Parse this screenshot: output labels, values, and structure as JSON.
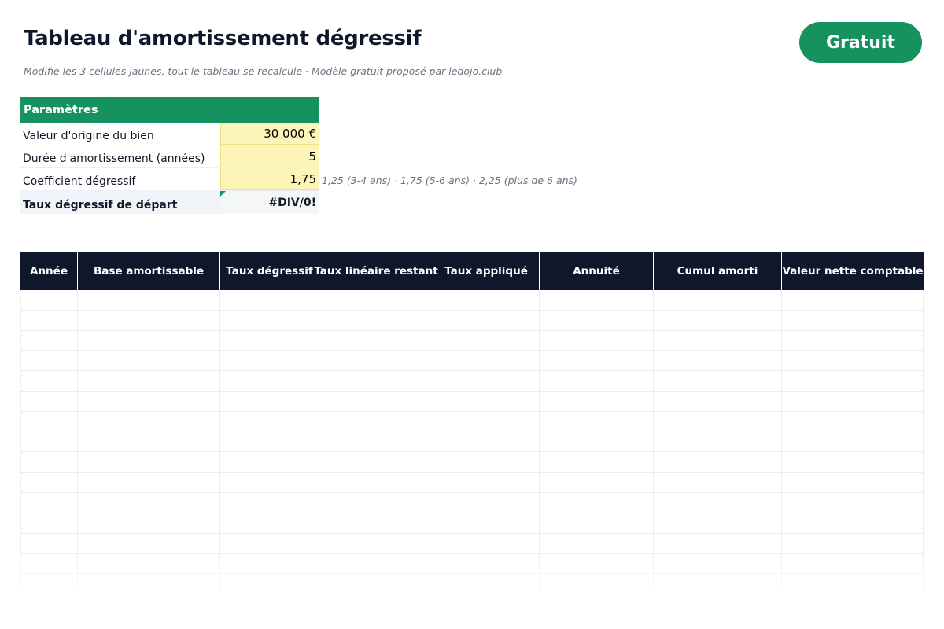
{
  "header": {
    "title": "Tableau d'amortissement dégressif",
    "subtitle": "Modifie les 3 cellules jaunes, tout le tableau se recalcule · Modèle gratuit proposé par ledojo.club",
    "badge": "Gratuit"
  },
  "parameters": {
    "title": "Paramètres",
    "rows": [
      {
        "label": "Valeur d'origine du bien",
        "value": "30 000 €"
      },
      {
        "label": "Durée d'amortissement (années)",
        "value": "5"
      },
      {
        "label": "Coefficient dégressif",
        "value": "1,75"
      },
      {
        "label": "Taux dégressif de départ",
        "value": "#DIV/0!"
      }
    ],
    "coefficient_hint": "1,25 (3-4 ans) · 1,75 (5-6 ans) · 2,25 (plus de 6 ans)"
  },
  "schedule": {
    "columns": [
      "Année",
      "Base amortissable",
      "Taux dégressif",
      "Taux linéaire restant",
      "Taux appliqué",
      "Annuité",
      "Cumul amorti",
      "Valeur nette comptable"
    ]
  },
  "colors": {
    "accent_green": "#16925f",
    "header_navy": "#0f172a",
    "input_yellow": "#fdf4b8"
  }
}
